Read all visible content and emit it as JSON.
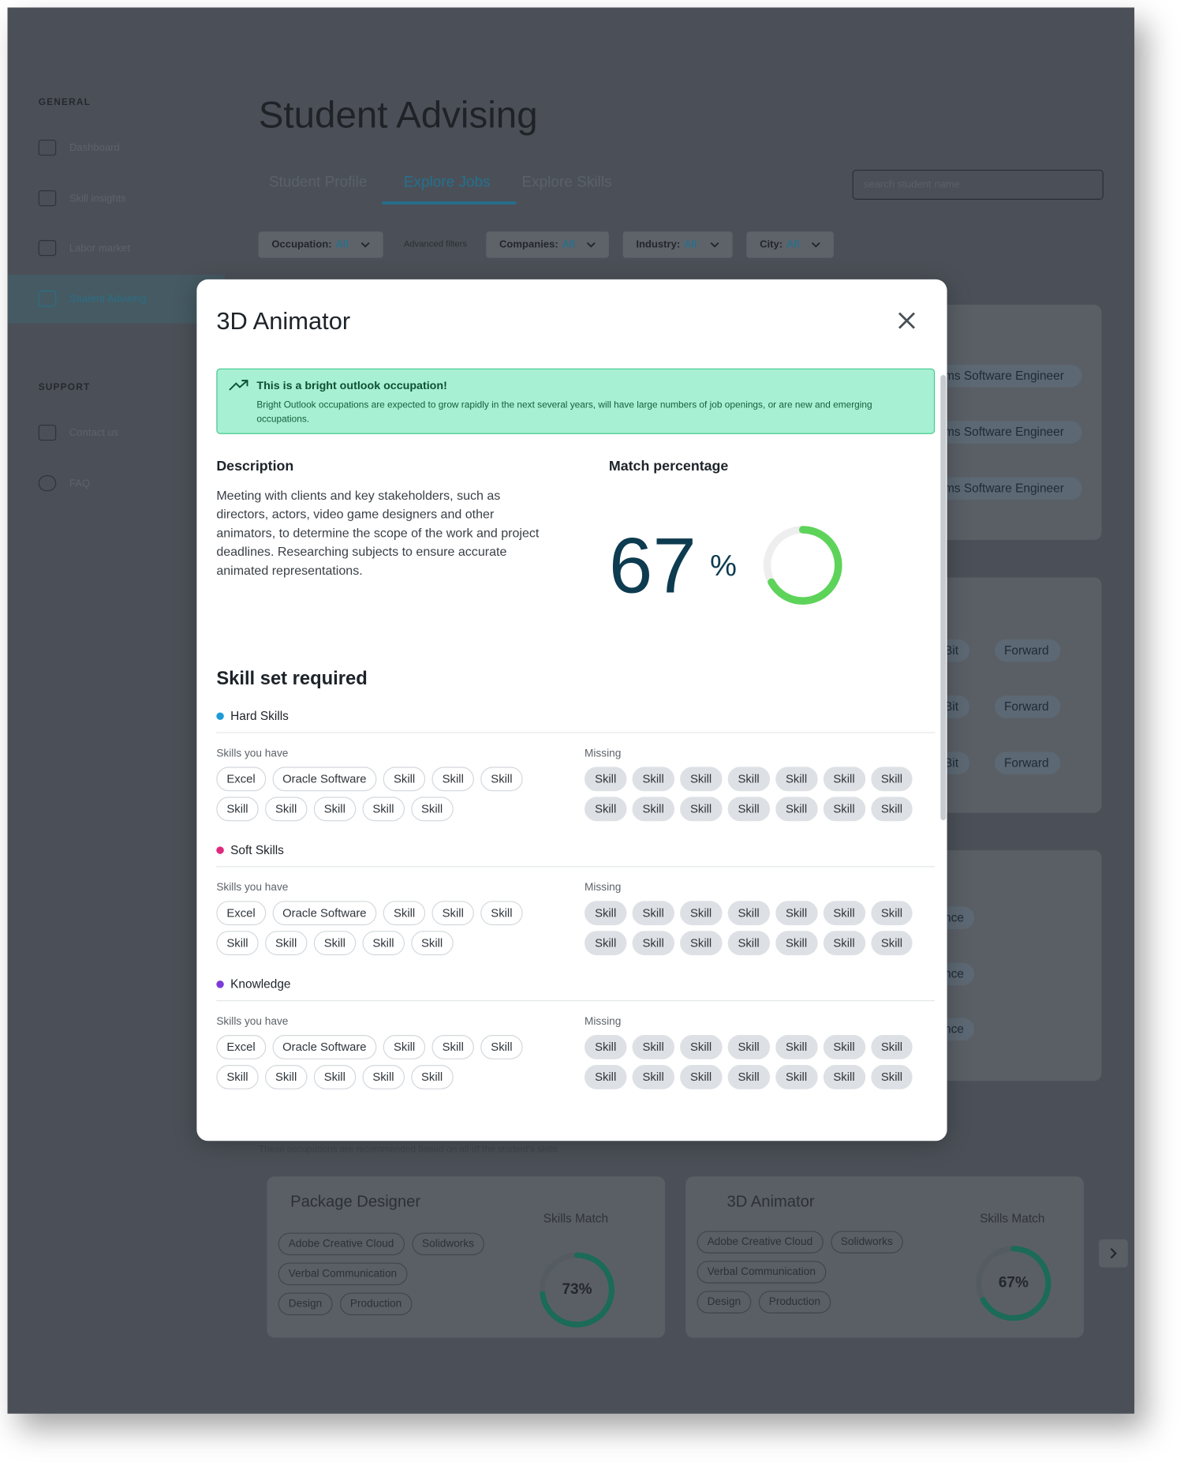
{
  "sidebar": {
    "sections": [
      {
        "heading": "GENERAL",
        "items": [
          "Dashboard",
          "Skill insights",
          "Labor market",
          "Student Advising"
        ]
      },
      {
        "heading": "SUPPORT",
        "items": [
          "Contact us",
          "FAQ"
        ]
      }
    ]
  },
  "header": {
    "title": "Student Advising",
    "tabs": [
      "Student Profile",
      "Explore Jobs",
      "Explore Skills"
    ],
    "search_placeholder": "search student name"
  },
  "filters": [
    {
      "label": "Occupation:",
      "value": "All"
    },
    {
      "label": "Advanced filters"
    },
    {
      "label": "Companies:",
      "value": "All"
    },
    {
      "label": "Industry:",
      "value": "All"
    },
    {
      "label": "City:",
      "value": "All"
    }
  ],
  "background_cards": [
    {
      "rows": [
        [
          "ms Software Engineer"
        ],
        [
          "ms Software Engineer"
        ],
        [
          "ms Software Engineer"
        ]
      ]
    },
    {
      "rows": [
        [
          "Bit",
          "Forward"
        ],
        [
          "Bit",
          "Forward"
        ],
        [
          "Bit",
          "Forward"
        ]
      ]
    },
    {
      "rows": [
        [
          "nce"
        ],
        [
          "nce"
        ],
        [
          "nce"
        ]
      ]
    }
  ],
  "recommendations": {
    "note": "These occupations are recommended based on all of the student's skills",
    "cards": [
      {
        "title": "Package Designer",
        "skills": [
          [
            "Adobe Creative Cloud",
            "Solidworks"
          ],
          [
            "Verbal Communication"
          ],
          [
            "Design",
            "Production"
          ]
        ],
        "match_heading": "Skills Match",
        "match": 73,
        "match_label": "73%"
      },
      {
        "title": "3D Animator",
        "skills": [
          [
            "Adobe Creative Cloud",
            "Solidworks"
          ],
          [
            "Verbal Communication"
          ],
          [
            "Design",
            "Production"
          ]
        ],
        "match_heading": "Skills Match",
        "match": 67,
        "match_label": "67%"
      }
    ]
  },
  "modal": {
    "title": "3D Animator",
    "banner": {
      "heading": "This is a bright outlook occupation!",
      "text": "Bright Outlook occupations are expected to grow rapidly in the next several years, will have large numbers of job openings, or are new and emerging occupations."
    },
    "description": {
      "heading": "Description",
      "text": "Meeting with clients and key stakeholders, such as directors, actors, video game designers and other animators, to determine the scope of the work and project deadlines. Researching subjects to ensure accurate animated representations."
    },
    "match": {
      "heading": "Match percentage",
      "value": 67,
      "unit": "%"
    },
    "skills": {
      "heading": "Skill set required",
      "have_label": "Skills you have",
      "missing_label": "Missing",
      "groups": [
        {
          "name": "Hard Skills",
          "color": "#1e9bd7",
          "have": [
            [
              "Excel",
              "Oracle Software",
              "Skill",
              "Skill",
              "Skill"
            ],
            [
              "Skill",
              "Skill",
              "Skill",
              "Skill",
              "Skill"
            ]
          ],
          "missing": [
            [
              "Skill",
              "Skill",
              "Skill",
              "Skill",
              "Skill",
              "Skill",
              "Skill"
            ],
            [
              "Skill",
              "Skill",
              "Skill",
              "Skill",
              "Skill",
              "Skill",
              "Skill"
            ]
          ]
        },
        {
          "name": "Soft Skills",
          "color": "#e0287a",
          "have": [
            [
              "Excel",
              "Oracle Software",
              "Skill",
              "Skill",
              "Skill"
            ],
            [
              "Skill",
              "Skill",
              "Skill",
              "Skill",
              "Skill"
            ]
          ],
          "missing": [
            [
              "Skill",
              "Skill",
              "Skill",
              "Skill",
              "Skill",
              "Skill",
              "Skill"
            ],
            [
              "Skill",
              "Skill",
              "Skill",
              "Skill",
              "Skill",
              "Skill",
              "Skill"
            ]
          ]
        },
        {
          "name": "Knowledge",
          "color": "#7b3bd8",
          "have": [
            [
              "Excel",
              "Oracle Software",
              "Skill",
              "Skill",
              "Skill"
            ],
            [
              "Skill",
              "Skill",
              "Skill",
              "Skill",
              "Skill"
            ]
          ],
          "missing": [
            [
              "Skill",
              "Skill",
              "Skill",
              "Skill",
              "Skill",
              "Skill",
              "Skill"
            ],
            [
              "Skill",
              "Skill",
              "Skill",
              "Skill",
              "Skill",
              "Skill",
              "Skill"
            ]
          ]
        }
      ]
    }
  }
}
